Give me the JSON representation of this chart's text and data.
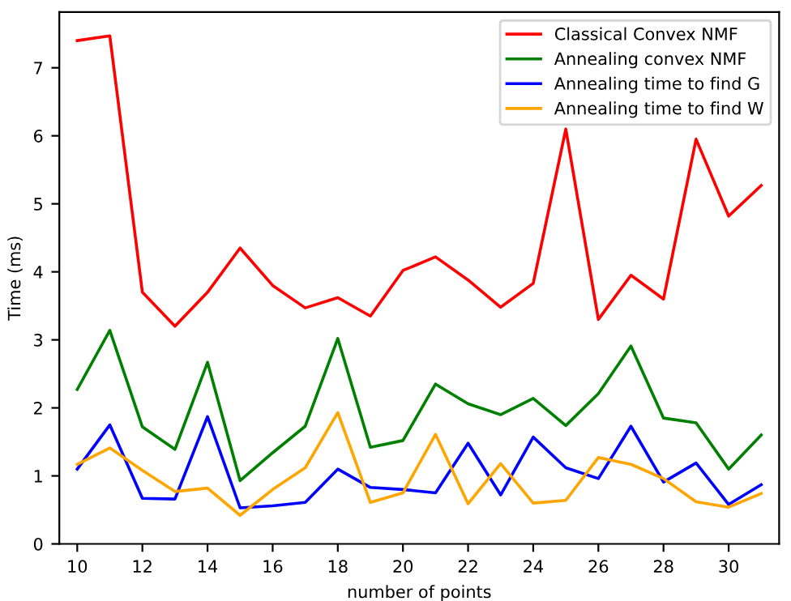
{
  "chart_data": {
    "type": "line",
    "xlabel": "number of points",
    "ylabel": "Time (ms)",
    "x": [
      10,
      11,
      12,
      13,
      14,
      15,
      16,
      17,
      18,
      19,
      20,
      21,
      22,
      23,
      24,
      25,
      26,
      27,
      28,
      29,
      30,
      31
    ],
    "series": [
      {
        "name": "Classical Convex NMF",
        "color": "#ff0000",
        "values": [
          7.4,
          7.47,
          3.7,
          3.2,
          3.7,
          4.35,
          3.8,
          3.47,
          3.62,
          3.35,
          4.02,
          4.22,
          3.88,
          3.48,
          3.83,
          6.1,
          3.3,
          3.95,
          3.6,
          5.95,
          4.82,
          5.27
        ]
      },
      {
        "name": "Annealing convex NMF",
        "color": "#008000",
        "values": [
          2.27,
          3.14,
          1.72,
          1.39,
          2.67,
          0.93,
          1.34,
          1.73,
          3.02,
          1.42,
          1.52,
          2.35,
          2.06,
          1.9,
          2.14,
          1.74,
          2.21,
          2.91,
          1.85,
          1.78,
          1.1,
          1.6
        ]
      },
      {
        "name": "Annealing time to find G",
        "color": "#0000ff",
        "values": [
          1.1,
          1.75,
          0.67,
          0.66,
          1.87,
          0.53,
          0.56,
          0.61,
          1.1,
          0.83,
          0.8,
          0.75,
          1.48,
          0.72,
          1.57,
          1.12,
          0.96,
          1.73,
          0.91,
          1.19,
          0.58,
          0.87
        ]
      },
      {
        "name": "Annealing time to find W",
        "color": "#ffa500",
        "values": [
          1.17,
          1.41,
          1.08,
          0.77,
          0.82,
          0.42,
          0.8,
          1.12,
          1.93,
          0.61,
          0.75,
          1.61,
          0.59,
          1.18,
          0.6,
          0.64,
          1.27,
          1.17,
          0.96,
          0.62,
          0.54,
          0.74
        ]
      }
    ],
    "xlim": [
      9.45,
      31.55
    ],
    "xticks": [
      10,
      12,
      14,
      16,
      18,
      20,
      22,
      24,
      26,
      28,
      30
    ],
    "ylim": [
      0,
      7.82
    ],
    "yticks": [
      0,
      1,
      2,
      3,
      4,
      5,
      6,
      7
    ],
    "grid": false,
    "legend": "top right",
    "marker": "none",
    "line_style": "solid"
  }
}
